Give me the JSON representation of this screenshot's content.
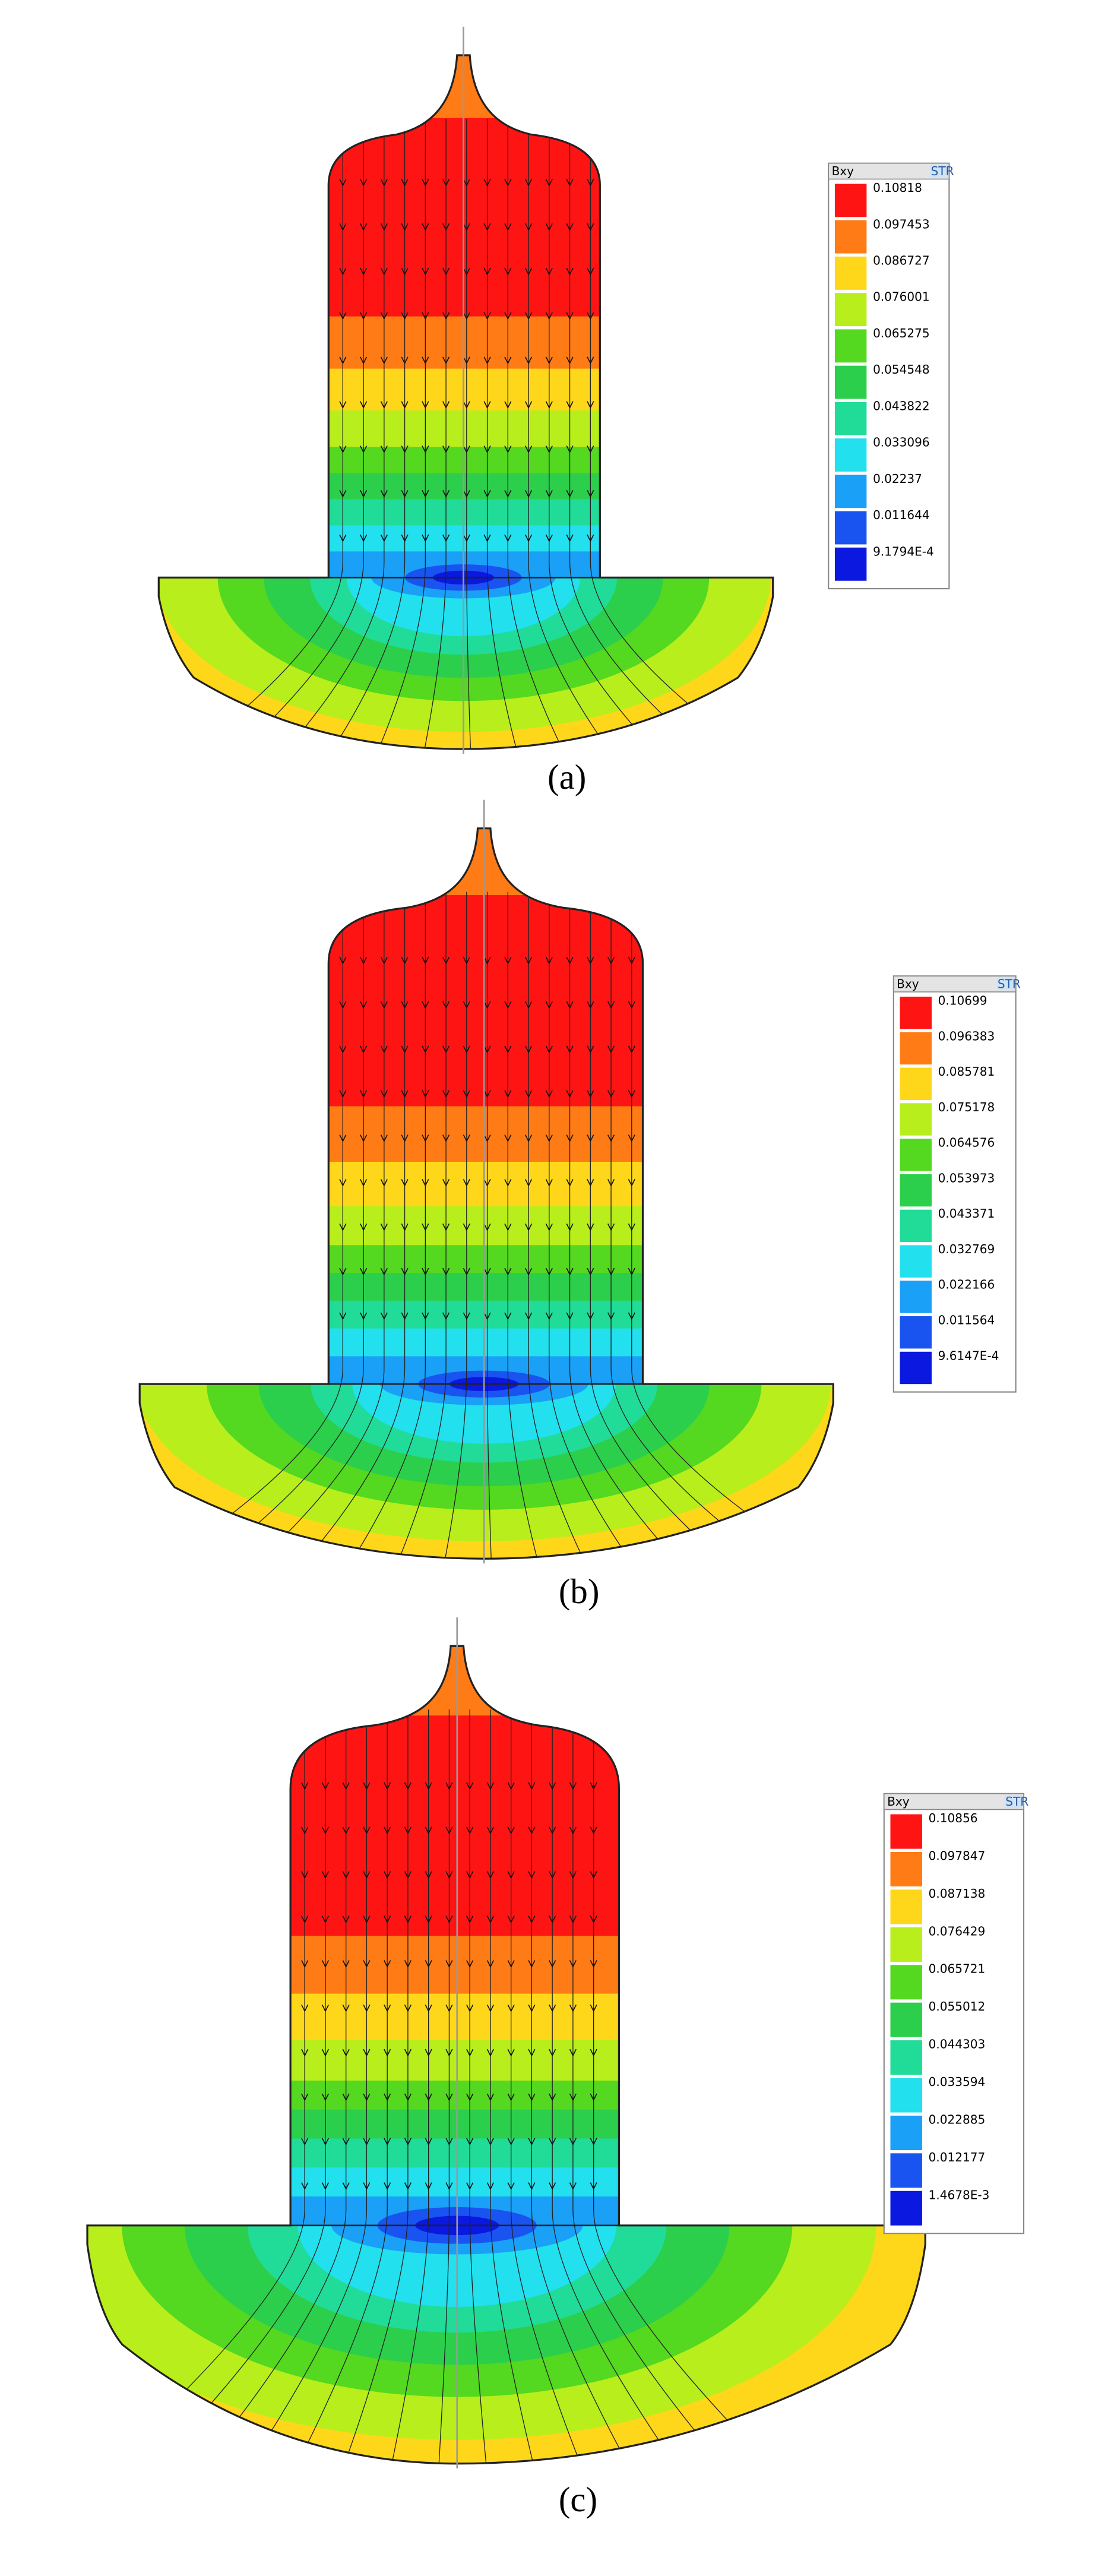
{
  "colors": [
    "#ff1414",
    "#ff7b16",
    "#ffd71a",
    "#b8ee1c",
    "#54d820",
    "#2ccf4c",
    "#20dc98",
    "#22e0ee",
    "#1aa0f6",
    "#1a54f0",
    "#0a18e0"
  ],
  "panels": [
    {
      "caption": "(a)",
      "legend": {
        "title": "Bxy",
        "badge": "STR",
        "labels": [
          "0.10818",
          "0.097453",
          "0.086727",
          "0.076001",
          "0.065275",
          "0.054548",
          "0.043822",
          "0.033096",
          "0.02237",
          "0.011644",
          "9.1794E-4"
        ]
      }
    },
    {
      "caption": "(b)",
      "legend": {
        "title": "Bxy",
        "badge": "STR",
        "labels": [
          "0.10699",
          "0.096383",
          "0.085781",
          "0.075178",
          "0.064576",
          "0.053973",
          "0.043371",
          "0.032769",
          "0.022166",
          "0.011564",
          "9.6147E-4"
        ]
      }
    },
    {
      "caption": "(c)",
      "legend": {
        "title": "Bxy",
        "badge": "STR",
        "labels": [
          "0.10856",
          "0.097847",
          "0.087138",
          "0.076429",
          "0.065721",
          "0.055012",
          "0.044303",
          "0.033594",
          "0.022885",
          "0.012177",
          "1.4678E-3"
        ]
      }
    }
  ]
}
